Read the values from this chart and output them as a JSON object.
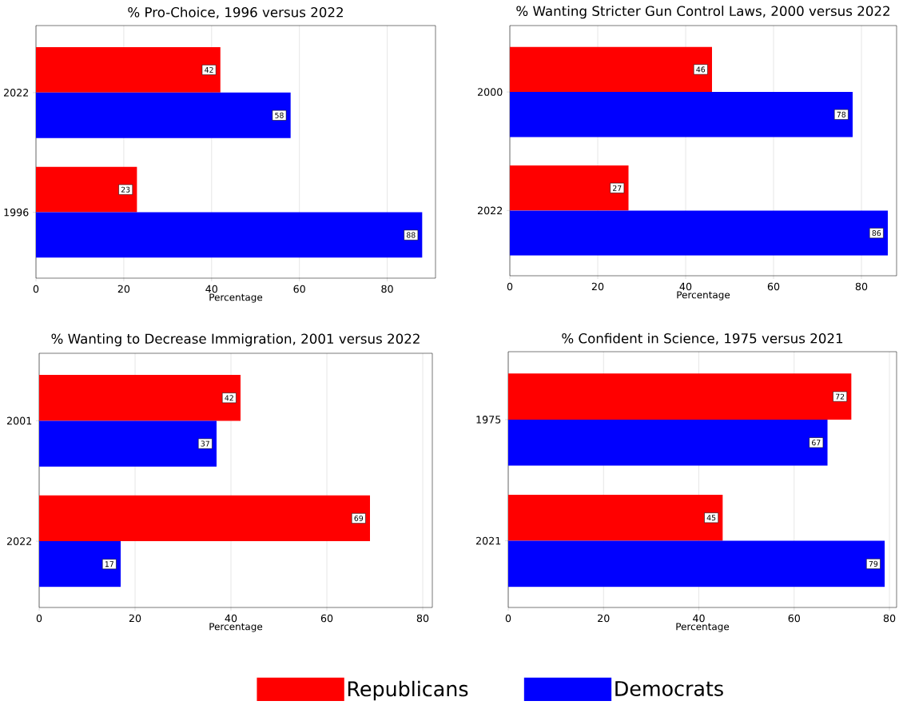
{
  "chart_data": [
    {
      "type": "bar",
      "orientation": "horizontal",
      "title": "% Pro-Choice, 1996 versus 2022",
      "xlabel": "Percentage",
      "categories": [
        "2022",
        "1996"
      ],
      "series": [
        {
          "color": "#ff0000",
          "values": [
            42,
            23
          ]
        },
        {
          "color": "#0000ff",
          "values": [
            58,
            88
          ]
        }
      ],
      "xlim": [
        0,
        91
      ],
      "xticks": [
        0,
        20,
        40,
        60,
        80
      ],
      "grid": "x",
      "data_labels": true
    },
    {
      "type": "bar",
      "orientation": "horizontal",
      "title": "% Wanting Stricter Gun Control Laws, 2000 versus 2022",
      "xlabel": "Percentage",
      "categories": [
        "2000",
        "2022"
      ],
      "series": [
        {
          "color": "#ff0000",
          "values": [
            46,
            27
          ]
        },
        {
          "color": "#0000ff",
          "values": [
            78,
            86
          ]
        }
      ],
      "xlim": [
        0,
        88
      ],
      "xticks": [
        0,
        20,
        40,
        60,
        80
      ],
      "grid": "x",
      "data_labels": true
    },
    {
      "type": "bar",
      "orientation": "horizontal",
      "title": "% Wanting to Decrease Immigration, 2001 versus 2022",
      "xlabel": "Percentage",
      "categories": [
        "2001",
        "2022"
      ],
      "series": [
        {
          "color": "#ff0000",
          "values": [
            42,
            69
          ]
        },
        {
          "color": "#0000ff",
          "values": [
            37,
            17
          ]
        }
      ],
      "xlim": [
        0,
        82
      ],
      "xticks": [
        0,
        20,
        40,
        60,
        80
      ],
      "grid": "x",
      "data_labels": true
    },
    {
      "type": "bar",
      "orientation": "horizontal",
      "title": "% Confident in Science, 1975 versus 2021",
      "xlabel": "Percentage",
      "categories": [
        "1975",
        "2021"
      ],
      "series": [
        {
          "name": "Republicans",
          "color": "#ff0000",
          "values": [
            72,
            45
          ]
        },
        {
          "name": "Democrats",
          "color": "#0000ff",
          "values": [
            67,
            79
          ]
        }
      ],
      "xlim": [
        0,
        81.5
      ],
      "xticks": [
        0,
        20,
        40,
        60,
        80
      ],
      "grid": "x",
      "data_labels": true,
      "legend": "bottom"
    }
  ]
}
